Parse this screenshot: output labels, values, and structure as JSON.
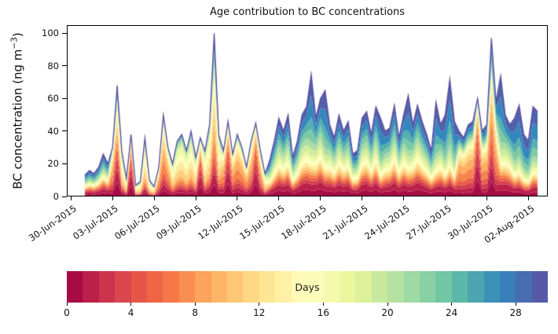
{
  "chart_data": {
    "type": "stacked_area",
    "title": "Age contribution to BC concentrations",
    "ylabel_parts": {
      "prefix": "BC concentration (ng m",
      "sup": "−3",
      "suffix": ")"
    },
    "ylabel_text": "BC concentration (ng m^-3)",
    "xlabel": "",
    "grid": false,
    "legend": "colorbar-horizontal-bottom",
    "ylim": [
      0,
      105
    ],
    "yticks": [
      0,
      20,
      40,
      60,
      80,
      100
    ],
    "xlim": [
      -0.3,
      34.4
    ],
    "xticks": {
      "positions_days": [
        0,
        3,
        6,
        9,
        12,
        15,
        18,
        21,
        24,
        27,
        30,
        33
      ],
      "labels": [
        "30-Jun-2015",
        "03-Jul-2015",
        "06-Jul-2015",
        "09-Jul-2015",
        "12-Jul-2015",
        "15-Jul-2015",
        "18-Jul-2015",
        "21-Jul-2015",
        "24-Jul-2015",
        "27-Jul-2015",
        "30-Jul-2015",
        "02-Aug-2015"
      ]
    },
    "colormap": {
      "name": "Spectral",
      "stops": [
        [
          0.0,
          "#9e0142"
        ],
        [
          0.1,
          "#d53e4f"
        ],
        [
          0.2,
          "#f46d43"
        ],
        [
          0.3,
          "#fdae61"
        ],
        [
          0.4,
          "#fee08b"
        ],
        [
          0.5,
          "#ffffbf"
        ],
        [
          0.6,
          "#e6f598"
        ],
        [
          0.7,
          "#abdda4"
        ],
        [
          0.8,
          "#66c2a5"
        ],
        [
          0.9,
          "#3288bd"
        ],
        [
          1.0,
          "#5e4fa2"
        ]
      ]
    },
    "colorbar": {
      "label": "Days",
      "range": [
        0,
        30
      ],
      "ticks": [
        0,
        4,
        8,
        12,
        16,
        20,
        24,
        28
      ],
      "segments": 30
    },
    "age_groups_days": [
      [
        0,
        2
      ],
      [
        2,
        6
      ],
      [
        6,
        10
      ],
      [
        10,
        14
      ],
      [
        14,
        18
      ],
      [
        18,
        22
      ],
      [
        22,
        26
      ],
      [
        26,
        30
      ]
    ],
    "profiles": {
      "E": [
        0.18,
        0.1,
        0.08,
        0.08,
        0.1,
        0.12,
        0.16,
        0.18
      ],
      "R": [
        0.35,
        0.3,
        0.15,
        0.1,
        0.05,
        0.03,
        0.01,
        0.01
      ],
      "Y": [
        0.12,
        0.08,
        0.12,
        0.25,
        0.25,
        0.1,
        0.05,
        0.03
      ],
      "O": [
        0.15,
        0.15,
        0.3,
        0.2,
        0.1,
        0.05,
        0.03,
        0.02
      ],
      "M": [
        0.15,
        0.08,
        0.07,
        0.08,
        0.12,
        0.15,
        0.15,
        0.2
      ],
      "B": [
        0.1,
        0.05,
        0.05,
        0.05,
        0.08,
        0.12,
        0.2,
        0.35
      ],
      "L": [
        0.12,
        0.13,
        0.25,
        0.15,
        0.08,
        0.07,
        0.08,
        0.12
      ],
      "P1": [
        0.25,
        0.2,
        0.15,
        0.15,
        0.08,
        0.05,
        0.05,
        0.07
      ],
      "PX": [
        0.15,
        0.12,
        0.18,
        0.2,
        0.12,
        0.06,
        0.07,
        0.1
      ],
      "PZ": [
        0.2,
        0.18,
        0.22,
        0.12,
        0.06,
        0.05,
        0.07,
        0.1
      ]
    },
    "samples": {
      "t_unit": "days since 30-Jun-2015",
      "t_start": 1.0,
      "t_step": 0.33333,
      "totals": [
        13,
        16,
        14,
        18,
        26,
        20,
        30,
        68,
        28,
        11,
        38,
        7,
        9,
        36,
        10,
        6,
        18,
        50,
        30,
        20,
        34,
        38,
        28,
        40,
        24,
        36,
        28,
        44,
        100,
        38,
        28,
        46,
        26,
        38,
        30,
        18,
        34,
        45,
        28,
        14,
        22,
        34,
        48,
        40,
        50,
        24,
        34,
        50,
        55,
        75,
        48,
        60,
        65,
        44,
        36,
        50,
        40,
        46,
        26,
        28,
        48,
        52,
        38,
        55,
        48,
        40,
        42,
        56,
        36,
        50,
        62,
        44,
        56,
        46,
        38,
        28,
        58,
        44,
        50,
        72,
        46,
        40,
        36,
        44,
        46,
        60,
        40,
        44,
        97,
        58,
        74,
        50,
        44,
        48,
        56,
        38,
        34,
        55,
        52
      ],
      "profile_keys": [
        "E",
        "E",
        "E",
        "E",
        "E",
        "E",
        "O",
        "P1",
        "Y",
        "Y",
        "R",
        "Y",
        "Y",
        "Y",
        "Y",
        "Y",
        "O",
        "O",
        "O",
        "Y",
        "Y",
        "Y",
        "Y",
        "Y",
        "Y",
        "R",
        "Y",
        "Y",
        "PX",
        "Y",
        "O",
        "R",
        "O",
        "O",
        "O",
        "O",
        "O",
        "R",
        "O",
        "Y",
        "M",
        "M",
        "M",
        "M",
        "M",
        "M",
        "M",
        "M",
        "M",
        "B",
        "M",
        "M",
        "B",
        "M",
        "M",
        "M",
        "M",
        "M",
        "M",
        "M",
        "M",
        "M",
        "M",
        "M",
        "B",
        "M",
        "M",
        "M",
        "M",
        "M",
        "B",
        "M",
        "M",
        "M",
        "M",
        "M",
        "B",
        "M",
        "B",
        "B",
        "B",
        "L",
        "L",
        "L",
        "L",
        "R",
        "L",
        "L",
        "PZ",
        "L",
        "B",
        "M",
        "M",
        "B",
        "B",
        "B",
        "B",
        "B",
        "B"
      ]
    }
  }
}
